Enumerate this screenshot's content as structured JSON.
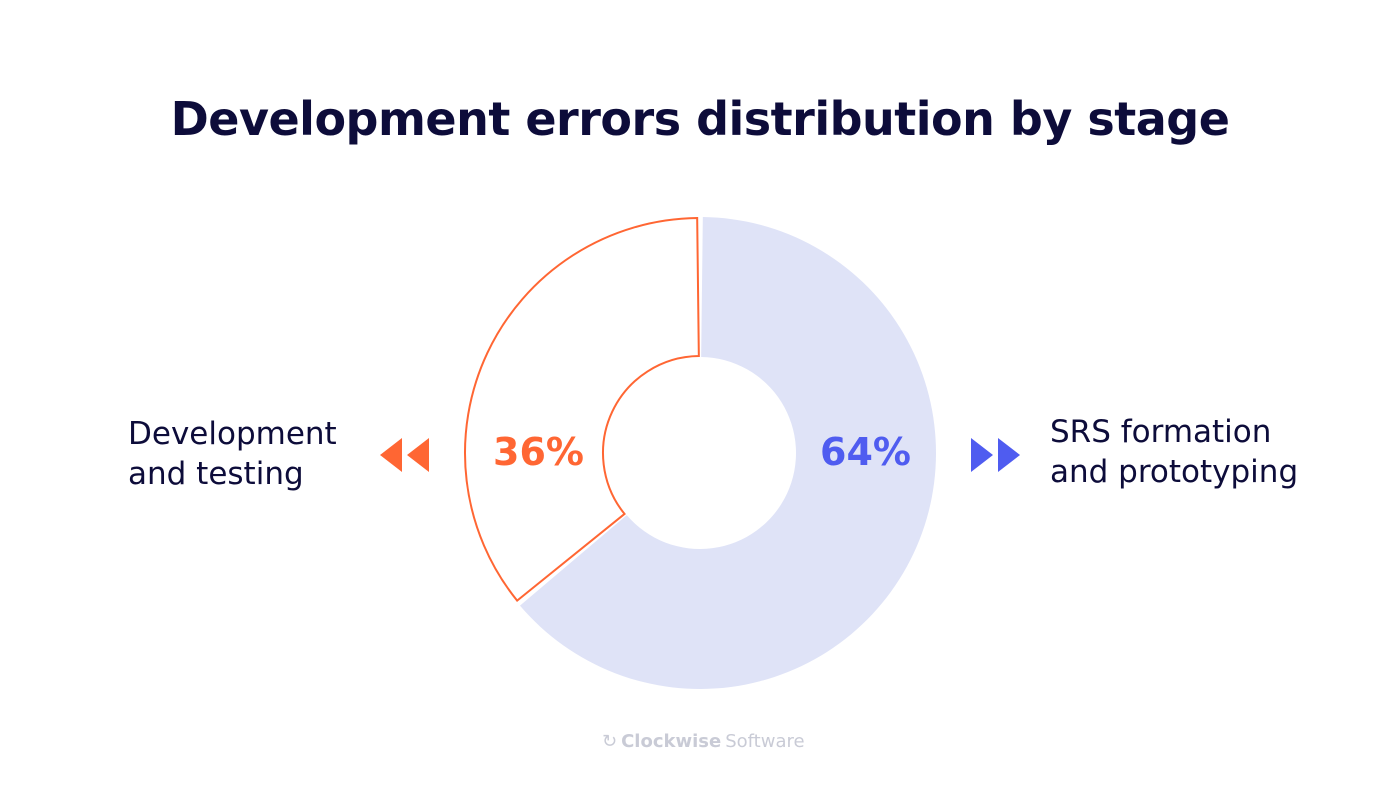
{
  "chart_data": {
    "type": "pie",
    "title": "Development errors distribution by stage",
    "donut": true,
    "categories": [
      "Development and testing",
      "SRS formation and prototyping"
    ],
    "values": [
      36,
      64
    ],
    "value_labels": [
      "36%",
      "64%"
    ],
    "label_lines": [
      [
        "Development",
        "and testing"
      ],
      [
        "SRS formation",
        "and prototyping"
      ]
    ],
    "colors": {
      "development": "#ff6633",
      "srs_fill": "#dfe3f7",
      "srs_text": "#4f5cf0",
      "title": "#0d0c3a"
    }
  },
  "brand": {
    "logo_bold": "Clockwise",
    "logo_light": "Software"
  }
}
